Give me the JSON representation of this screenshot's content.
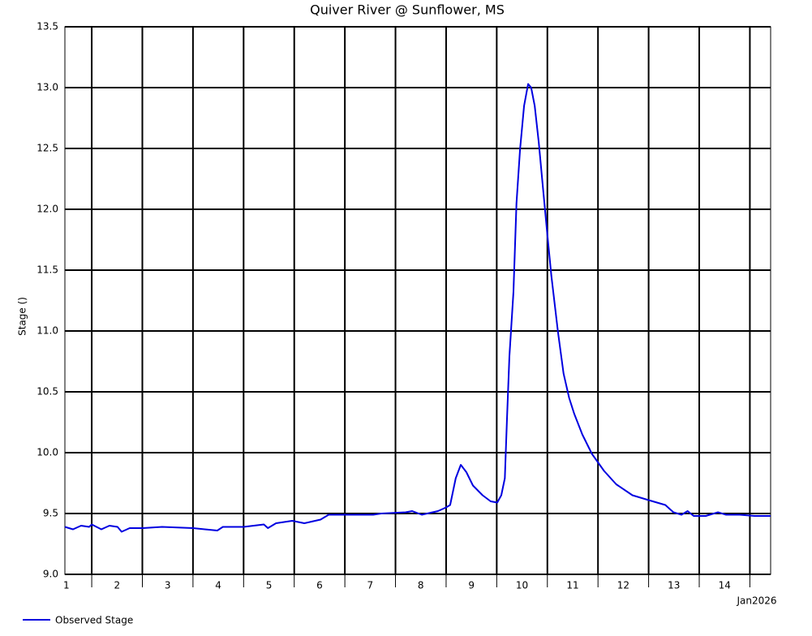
{
  "chart_data": {
    "type": "line",
    "title": "Quiver River @ Sunflower, MS",
    "ylabel": "Stage ()",
    "xlabel": "Jan2026",
    "xlim": [
      1.47,
      15.41
    ],
    "ylim": [
      9.0,
      13.5
    ],
    "xticks": [
      {
        "value": 1.5,
        "label": "1"
      },
      {
        "value": 2.5,
        "label": "2"
      },
      {
        "value": 3.5,
        "label": "3"
      },
      {
        "value": 4.5,
        "label": "4"
      },
      {
        "value": 5.5,
        "label": "5"
      },
      {
        "value": 6.5,
        "label": "6"
      },
      {
        "value": 7.5,
        "label": "7"
      },
      {
        "value": 8.5,
        "label": "8"
      },
      {
        "value": 9.5,
        "label": "9"
      },
      {
        "value": 10.5,
        "label": "10"
      },
      {
        "value": 11.5,
        "label": "11"
      },
      {
        "value": 12.5,
        "label": "12"
      },
      {
        "value": 13.5,
        "label": "13"
      },
      {
        "value": 14.5,
        "label": "14"
      }
    ],
    "xgrid": [
      2,
      3,
      4,
      5,
      6,
      7,
      8,
      9,
      10,
      11,
      12,
      13,
      14,
      15
    ],
    "yticks": [
      {
        "value": 9.0,
        "label": "9.0"
      },
      {
        "value": 9.5,
        "label": "9.5"
      },
      {
        "value": 10.0,
        "label": "10.0"
      },
      {
        "value": 10.5,
        "label": "10.5"
      },
      {
        "value": 11.0,
        "label": "11.0"
      },
      {
        "value": 11.5,
        "label": "11.5"
      },
      {
        "value": 12.0,
        "label": "12.0"
      },
      {
        "value": 12.5,
        "label": "12.5"
      },
      {
        "value": 13.0,
        "label": "13.0"
      },
      {
        "value": 13.5,
        "label": "13.5"
      }
    ],
    "grid": true,
    "legend": "bottom-left",
    "x": [
      1.47,
      1.63,
      1.79,
      1.95,
      2.0,
      2.19,
      2.35,
      2.51,
      2.59,
      2.75,
      3.01,
      3.39,
      4.0,
      4.48,
      4.59,
      5.0,
      5.4,
      5.48,
      5.64,
      5.96,
      6.2,
      6.52,
      6.68,
      7.0,
      7.56,
      7.72,
      8.2,
      8.33,
      8.52,
      8.84,
      9.0,
      9.08,
      9.19,
      9.29,
      9.4,
      9.53,
      9.72,
      9.88,
      10.01,
      10.09,
      10.16,
      10.2,
      10.25,
      10.33,
      10.39,
      10.46,
      10.54,
      10.62,
      10.68,
      10.75,
      10.83,
      10.91,
      11.0,
      11.08,
      11.21,
      11.32,
      11.43,
      11.53,
      11.69,
      11.88,
      12.12,
      12.36,
      12.68,
      13.0,
      13.33,
      13.49,
      13.65,
      13.77,
      13.89,
      14.13,
      14.37,
      14.53,
      14.8,
      15.09,
      15.41
    ],
    "series": [
      {
        "name": "Observed Stage",
        "color": "#0000e0",
        "values": [
          9.39,
          9.37,
          9.4,
          9.39,
          9.41,
          9.37,
          9.4,
          9.39,
          9.35,
          9.38,
          9.38,
          9.39,
          9.38,
          9.36,
          9.39,
          9.39,
          9.41,
          9.38,
          9.42,
          9.44,
          9.42,
          9.45,
          9.49,
          9.49,
          9.49,
          9.5,
          9.51,
          9.52,
          9.49,
          9.52,
          9.55,
          9.57,
          9.79,
          9.9,
          9.84,
          9.73,
          9.65,
          9.6,
          9.59,
          9.65,
          9.79,
          10.25,
          10.79,
          11.32,
          12.05,
          12.49,
          12.85,
          13.03,
          13.0,
          12.85,
          12.55,
          12.19,
          11.79,
          11.45,
          10.99,
          10.65,
          10.45,
          10.32,
          10.15,
          9.99,
          9.85,
          9.74,
          9.65,
          9.61,
          9.57,
          9.51,
          9.49,
          9.52,
          9.48,
          9.48,
          9.51,
          9.49,
          9.49,
          9.48,
          9.48
        ]
      }
    ]
  }
}
